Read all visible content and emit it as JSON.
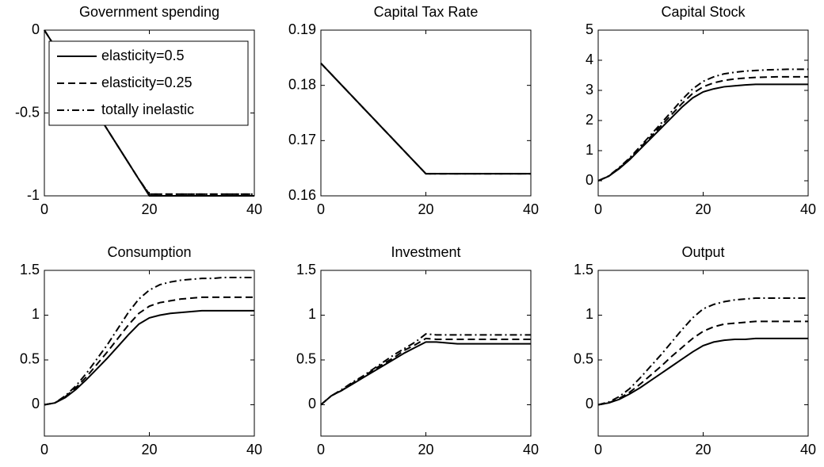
{
  "chart_data": [
    {
      "type": "line",
      "title": "Government spending",
      "xlim": [
        0,
        40
      ],
      "xticks": [
        0,
        20,
        40
      ],
      "ylim": [
        -1,
        0
      ],
      "yticks": [
        -1,
        -0.5,
        0
      ],
      "legend": "northeast",
      "x": [
        0,
        2,
        4,
        6,
        8,
        10,
        12,
        14,
        16,
        18,
        20,
        22,
        24,
        26,
        28,
        30,
        32,
        34,
        36,
        38,
        40
      ],
      "series": [
        {
          "name": "elasticity=0.5",
          "color": "#000000",
          "dash": "solid",
          "values": [
            0,
            -0.1,
            -0.2,
            -0.3,
            -0.4,
            -0.5,
            -0.6,
            -0.7,
            -0.8,
            -0.9,
            -1,
            -1,
            -1,
            -1,
            -1,
            -1,
            -1,
            -1,
            -1,
            -1,
            -1
          ]
        },
        {
          "name": "elasticity=0.25",
          "color": "#000000",
          "dash": "dashed",
          "values": [
            0,
            -0.1,
            -0.2,
            -0.3,
            -0.4,
            -0.5,
            -0.6,
            -0.7,
            -0.8,
            -0.9,
            -0.99,
            -0.99,
            -0.99,
            -0.99,
            -0.99,
            -0.99,
            -0.99,
            -0.99,
            -0.99,
            -0.99,
            -0.99
          ]
        },
        {
          "name": "totally inelastic",
          "color": "#000000",
          "dash": "dashdot",
          "values": [
            0,
            -0.1,
            -0.2,
            -0.3,
            -0.4,
            -0.5,
            -0.6,
            -0.7,
            -0.8,
            -0.9,
            -0.99,
            -0.99,
            -0.99,
            -0.99,
            -0.99,
            -0.99,
            -0.99,
            -0.99,
            -0.99,
            -0.99,
            -0.99
          ]
        }
      ]
    },
    {
      "type": "line",
      "title": "Capital Tax Rate",
      "xlim": [
        0,
        40
      ],
      "xticks": [
        0,
        20,
        40
      ],
      "ylim": [
        0.16,
        0.19
      ],
      "yticks": [
        0.16,
        0.17,
        0.18,
        0.19
      ],
      "x": [
        0,
        2,
        4,
        6,
        8,
        10,
        12,
        14,
        16,
        18,
        20,
        22,
        24,
        26,
        28,
        30,
        32,
        34,
        36,
        38,
        40
      ],
      "series": [
        {
          "color": "#000000",
          "dash": "solid",
          "values": [
            0.184,
            0.182,
            0.18,
            0.178,
            0.176,
            0.174,
            0.172,
            0.17,
            0.168,
            0.166,
            0.164,
            0.164,
            0.164,
            0.164,
            0.164,
            0.164,
            0.164,
            0.164,
            0.164,
            0.164,
            0.164
          ]
        },
        {
          "color": "#000000",
          "dash": "dashed",
          "values": [
            0.184,
            0.182,
            0.18,
            0.178,
            0.176,
            0.174,
            0.172,
            0.17,
            0.168,
            0.166,
            0.164,
            0.164,
            0.164,
            0.164,
            0.164,
            0.164,
            0.164,
            0.164,
            0.164,
            0.164,
            0.164
          ]
        },
        {
          "color": "#000000",
          "dash": "dashdot",
          "values": [
            0.184,
            0.182,
            0.18,
            0.178,
            0.176,
            0.174,
            0.172,
            0.17,
            0.168,
            0.166,
            0.164,
            0.164,
            0.164,
            0.164,
            0.164,
            0.164,
            0.164,
            0.164,
            0.164,
            0.164,
            0.164
          ]
        }
      ]
    },
    {
      "type": "line",
      "title": "Capital Stock",
      "xlim": [
        0,
        40
      ],
      "xticks": [
        0,
        20,
        40
      ],
      "ylim": [
        -0.5,
        5
      ],
      "yticks": [
        0,
        1,
        2,
        3,
        4,
        5
      ],
      "x": [
        0,
        2,
        4,
        6,
        8,
        10,
        12,
        14,
        16,
        18,
        20,
        22,
        24,
        26,
        28,
        30,
        32,
        34,
        36,
        38,
        40
      ],
      "series": [
        {
          "color": "#000000",
          "dash": "solid",
          "values": [
            0,
            0.15,
            0.4,
            0.7,
            1.05,
            1.4,
            1.75,
            2.1,
            2.45,
            2.75,
            2.95,
            3.05,
            3.12,
            3.15,
            3.18,
            3.2,
            3.2,
            3.2,
            3.2,
            3.2,
            3.2
          ]
        },
        {
          "color": "#000000",
          "dash": "dashed",
          "values": [
            0,
            0.15,
            0.42,
            0.73,
            1.1,
            1.46,
            1.83,
            2.2,
            2.57,
            2.9,
            3.12,
            3.25,
            3.33,
            3.38,
            3.41,
            3.43,
            3.44,
            3.45,
            3.45,
            3.45,
            3.45
          ]
        },
        {
          "color": "#000000",
          "dash": "dashdot",
          "values": [
            0,
            0.16,
            0.44,
            0.76,
            1.14,
            1.52,
            1.91,
            2.3,
            2.7,
            3.05,
            3.3,
            3.45,
            3.55,
            3.6,
            3.64,
            3.66,
            3.68,
            3.69,
            3.7,
            3.7,
            3.7
          ]
        }
      ]
    },
    {
      "type": "line",
      "title": "Consumption",
      "xlim": [
        0,
        40
      ],
      "xticks": [
        0,
        20,
        40
      ],
      "ylim": [
        -0.35,
        1.5
      ],
      "yticks": [
        0,
        0.5,
        1,
        1.5
      ],
      "x": [
        0,
        2,
        4,
        6,
        8,
        10,
        12,
        14,
        16,
        18,
        20,
        22,
        24,
        26,
        28,
        30,
        32,
        34,
        36,
        38,
        40
      ],
      "series": [
        {
          "color": "#000000",
          "dash": "solid",
          "values": [
            0,
            0.02,
            0.08,
            0.17,
            0.28,
            0.4,
            0.52,
            0.65,
            0.78,
            0.9,
            0.97,
            1.0,
            1.02,
            1.03,
            1.04,
            1.05,
            1.05,
            1.05,
            1.05,
            1.05,
            1.05
          ]
        },
        {
          "color": "#000000",
          "dash": "dashed",
          "values": [
            0,
            0.02,
            0.09,
            0.19,
            0.31,
            0.45,
            0.59,
            0.74,
            0.89,
            1.02,
            1.1,
            1.14,
            1.16,
            1.18,
            1.19,
            1.2,
            1.2,
            1.2,
            1.2,
            1.2,
            1.2
          ]
        },
        {
          "color": "#000000",
          "dash": "dashdot",
          "values": [
            0,
            0.02,
            0.1,
            0.21,
            0.35,
            0.51,
            0.67,
            0.85,
            1.03,
            1.18,
            1.28,
            1.34,
            1.37,
            1.39,
            1.4,
            1.41,
            1.41,
            1.42,
            1.42,
            1.42,
            1.42
          ]
        }
      ]
    },
    {
      "type": "line",
      "title": "Investment",
      "xlim": [
        0,
        40
      ],
      "xticks": [
        0,
        20,
        40
      ],
      "ylim": [
        -0.35,
        1.5
      ],
      "yticks": [
        0,
        0.5,
        1,
        1.5
      ],
      "x": [
        0,
        2,
        4,
        6,
        8,
        10,
        12,
        14,
        16,
        18,
        20,
        22,
        24,
        26,
        28,
        30,
        32,
        34,
        36,
        38,
        40
      ],
      "series": [
        {
          "color": "#000000",
          "dash": "solid",
          "values": [
            0,
            0.1,
            0.16,
            0.23,
            0.3,
            0.37,
            0.44,
            0.51,
            0.58,
            0.64,
            0.7,
            0.7,
            0.69,
            0.68,
            0.68,
            0.68,
            0.68,
            0.68,
            0.68,
            0.68,
            0.68
          ]
        },
        {
          "color": "#000000",
          "dash": "dashed",
          "values": [
            0,
            0.1,
            0.16,
            0.24,
            0.31,
            0.39,
            0.46,
            0.53,
            0.61,
            0.67,
            0.74,
            0.73,
            0.73,
            0.73,
            0.73,
            0.73,
            0.73,
            0.73,
            0.73,
            0.73,
            0.73
          ]
        },
        {
          "color": "#000000",
          "dash": "dashdot",
          "values": [
            0,
            0.1,
            0.17,
            0.25,
            0.32,
            0.4,
            0.48,
            0.56,
            0.63,
            0.7,
            0.79,
            0.78,
            0.78,
            0.78,
            0.78,
            0.78,
            0.78,
            0.78,
            0.78,
            0.78,
            0.78
          ]
        }
      ]
    },
    {
      "type": "line",
      "title": "Output",
      "xlim": [
        0,
        40
      ],
      "xticks": [
        0,
        20,
        40
      ],
      "ylim": [
        -0.35,
        1.5
      ],
      "yticks": [
        0,
        0.5,
        1,
        1.5
      ],
      "x": [
        0,
        2,
        4,
        6,
        8,
        10,
        12,
        14,
        16,
        18,
        20,
        22,
        24,
        26,
        28,
        30,
        32,
        34,
        36,
        38,
        40
      ],
      "series": [
        {
          "color": "#000000",
          "dash": "solid",
          "values": [
            0,
            0.02,
            0.06,
            0.12,
            0.19,
            0.27,
            0.35,
            0.43,
            0.51,
            0.59,
            0.66,
            0.7,
            0.72,
            0.73,
            0.73,
            0.74,
            0.74,
            0.74,
            0.74,
            0.74,
            0.74
          ]
        },
        {
          "color": "#000000",
          "dash": "dashed",
          "values": [
            0,
            0.02,
            0.07,
            0.14,
            0.23,
            0.33,
            0.43,
            0.54,
            0.64,
            0.74,
            0.82,
            0.87,
            0.9,
            0.91,
            0.92,
            0.93,
            0.93,
            0.93,
            0.93,
            0.93,
            0.93
          ]
        },
        {
          "color": "#000000",
          "dash": "dashdot",
          "values": [
            0,
            0.03,
            0.09,
            0.18,
            0.3,
            0.43,
            0.56,
            0.7,
            0.84,
            0.97,
            1.07,
            1.12,
            1.15,
            1.17,
            1.18,
            1.19,
            1.19,
            1.19,
            1.19,
            1.19,
            1.19
          ]
        }
      ]
    }
  ]
}
